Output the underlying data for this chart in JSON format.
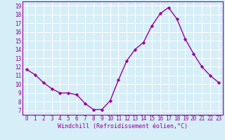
{
  "x": [
    0,
    1,
    2,
    3,
    4,
    5,
    6,
    7,
    8,
    9,
    10,
    11,
    12,
    13,
    14,
    15,
    16,
    17,
    18,
    19,
    20,
    21,
    22,
    23
  ],
  "y": [
    11.7,
    11.1,
    10.2,
    9.5,
    9.0,
    9.0,
    8.8,
    7.8,
    7.1,
    7.1,
    8.1,
    10.5,
    12.7,
    14.0,
    14.8,
    16.7,
    18.1,
    18.8,
    17.5,
    15.2,
    13.5,
    12.0,
    11.0,
    10.2
  ],
  "line_color": "#990099",
  "marker": "D",
  "markersize": 2.2,
  "linewidth": 1.0,
  "xlabel": "Windchill (Refroidissement éolien,°C)",
  "xlabel_fontsize": 6.0,
  "ylabel_ticks": [
    7,
    8,
    9,
    10,
    11,
    12,
    13,
    14,
    15,
    16,
    17,
    18,
    19
  ],
  "xlim": [
    -0.5,
    23.5
  ],
  "ylim": [
    6.5,
    19.5
  ],
  "bg_color": "#d5eef7",
  "grid_color": "#ffffff",
  "tick_fontsize": 5.5,
  "tick_label_color": "#990099"
}
